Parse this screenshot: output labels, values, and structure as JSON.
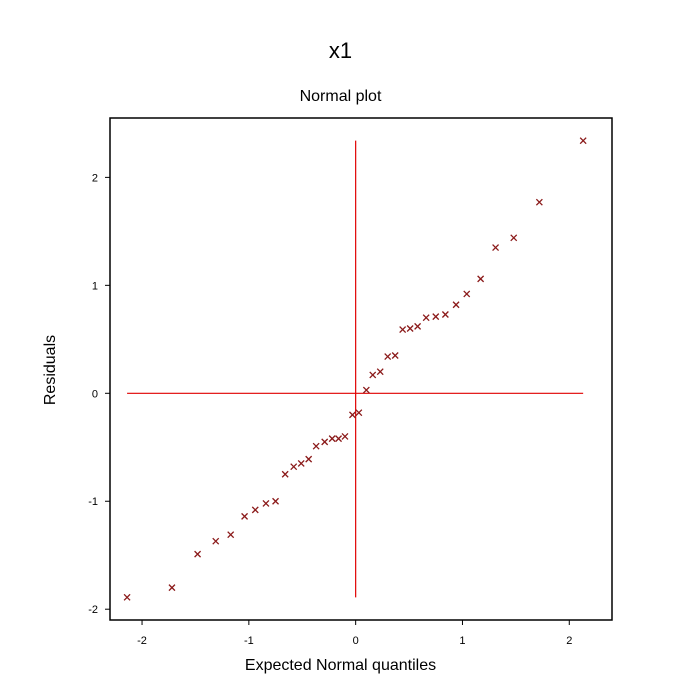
{
  "title": "x1",
  "chart_data": {
    "type": "scatter",
    "title": "Normal plot",
    "xlabel": "Expected Normal quantiles",
    "ylabel": "Residuals",
    "xlim": [
      -2.3,
      2.4
    ],
    "ylim": [
      -2.1,
      2.55
    ],
    "xticks": [
      -2,
      -1,
      0,
      1,
      2
    ],
    "yticks": [
      -2,
      -1,
      0,
      1,
      2
    ],
    "grid": false,
    "marker": "x",
    "colors": {
      "points": "#8b1a1a",
      "reference_lines": "#e00000",
      "frame": "#000000"
    },
    "reference_lines": {
      "vertical_x": 0,
      "horizontal_y": 0
    },
    "points": [
      {
        "x": -2.14,
        "y": -1.89
      },
      {
        "x": -1.72,
        "y": -1.8
      },
      {
        "x": -1.48,
        "y": -1.49
      },
      {
        "x": -1.31,
        "y": -1.37
      },
      {
        "x": -1.17,
        "y": -1.31
      },
      {
        "x": -1.04,
        "y": -1.14
      },
      {
        "x": -0.94,
        "y": -1.08
      },
      {
        "x": -0.84,
        "y": -1.02
      },
      {
        "x": -0.75,
        "y": -1.0
      },
      {
        "x": -0.66,
        "y": -0.75
      },
      {
        "x": -0.58,
        "y": -0.68
      },
      {
        "x": -0.51,
        "y": -0.65
      },
      {
        "x": -0.44,
        "y": -0.61
      },
      {
        "x": -0.37,
        "y": -0.49
      },
      {
        "x": -0.29,
        "y": -0.45
      },
      {
        "x": -0.22,
        "y": -0.42
      },
      {
        "x": -0.16,
        "y": -0.42
      },
      {
        "x": -0.1,
        "y": -0.4
      },
      {
        "x": -0.03,
        "y": -0.2
      },
      {
        "x": 0.03,
        "y": -0.18
      },
      {
        "x": 0.1,
        "y": 0.03
      },
      {
        "x": 0.16,
        "y": 0.17
      },
      {
        "x": 0.23,
        "y": 0.2
      },
      {
        "x": 0.3,
        "y": 0.34
      },
      {
        "x": 0.37,
        "y": 0.35
      },
      {
        "x": 0.44,
        "y": 0.59
      },
      {
        "x": 0.51,
        "y": 0.6
      },
      {
        "x": 0.58,
        "y": 0.62
      },
      {
        "x": 0.66,
        "y": 0.7
      },
      {
        "x": 0.75,
        "y": 0.71
      },
      {
        "x": 0.84,
        "y": 0.73
      },
      {
        "x": 0.94,
        "y": 0.82
      },
      {
        "x": 1.04,
        "y": 0.92
      },
      {
        "x": 1.17,
        "y": 1.06
      },
      {
        "x": 1.31,
        "y": 1.35
      },
      {
        "x": 1.48,
        "y": 1.44
      },
      {
        "x": 1.72,
        "y": 1.77
      },
      {
        "x": 2.13,
        "y": 2.34
      }
    ]
  }
}
